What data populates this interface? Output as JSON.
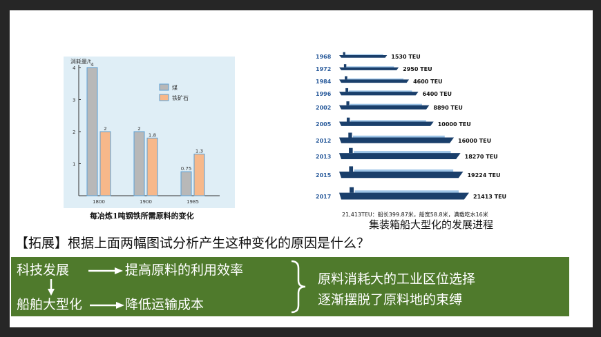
{
  "bar_chart": {
    "caption": "每冶炼1吨钢铁所需原料的变化",
    "chart_data": {
      "type": "bar",
      "categories": [
        "1800",
        "1900",
        "1985"
      ],
      "ylabel": "消耗量/t",
      "ylim": [
        0,
        4
      ],
      "yticks": [
        "1",
        "2",
        "3",
        "4"
      ],
      "series": [
        {
          "name": "煤",
          "values": [
            4,
            2,
            0.75
          ],
          "labels": [
            "4",
            "2",
            "0.75"
          ],
          "color": "#b8b8b8"
        },
        {
          "name": "铁矿石",
          "values": [
            2,
            1.8,
            1.3
          ],
          "labels": [
            "2",
            "1.8",
            "1.3"
          ],
          "color": "#f7b88a"
        }
      ],
      "legend_position": "top-right"
    }
  },
  "ship_chart": {
    "caption": "集装箱船大型化的发展进程",
    "note": "21,413TEU：船长399.87米，船宽58.8米，满载吃水16米",
    "ships": [
      {
        "year": "1968",
        "capacity": "1530 TEU",
        "teu": 1530
      },
      {
        "year": "1972",
        "capacity": "2950 TEU",
        "teu": 2950
      },
      {
        "year": "1984",
        "capacity": "4600 TEU",
        "teu": 4600
      },
      {
        "year": "1996",
        "capacity": "6400 TEU",
        "teu": 6400
      },
      {
        "year": "2002",
        "capacity": "8890 TEU",
        "teu": 8890
      },
      {
        "year": "2005",
        "capacity": "10000 TEU",
        "teu": 10000
      },
      {
        "year": "2012",
        "capacity": "16000 TEU",
        "teu": 16000
      },
      {
        "year": "2013",
        "capacity": "18270 TEU",
        "teu": 18270
      },
      {
        "year": "2015",
        "capacity": "19224 TEU",
        "teu": 19224
      },
      {
        "year": "2017",
        "capacity": "21413 TEU",
        "teu": 21413
      }
    ],
    "colors": {
      "hull": "#1a3f6b",
      "cargo": "#9cc3e6",
      "year": "#2b5c9c"
    }
  },
  "question": "【拓展】根据上面两幅图试分析产生这种变化的原因是什么？",
  "summary": {
    "tech": "科技发展",
    "efficiency": "提高原料的利用效率",
    "ships": "船舶大型化",
    "cost": "降低运输成本",
    "conclusion_line1": "原料消耗大的工业区位选择",
    "conclusion_line2": "逐渐摆脱了原料地的束缚",
    "bg_color": "#4f7a2c"
  }
}
